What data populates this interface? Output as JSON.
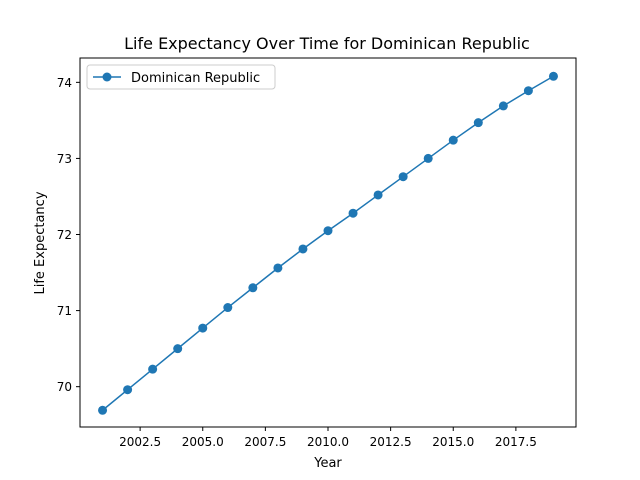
{
  "chart_data": {
    "type": "line",
    "title": "Life Expectancy Over Time for Dominican Republic",
    "xlabel": "Year",
    "ylabel": "Life Expectancy",
    "xlim": [
      2000.1,
      2019.9
    ],
    "ylim": [
      69.47,
      74.32
    ],
    "xticks": [
      2002.5,
      2005.0,
      2007.5,
      2010.0,
      2012.5,
      2015.0,
      2017.5
    ],
    "xtick_labels": [
      "2002.5",
      "2005.0",
      "2007.5",
      "2010.0",
      "2012.5",
      "2015.0",
      "2017.5"
    ],
    "yticks": [
      70,
      71,
      72,
      73,
      74
    ],
    "ytick_labels": [
      "70",
      "71",
      "72",
      "73",
      "74"
    ],
    "grid": false,
    "legend_position": "top-left",
    "series": [
      {
        "name": "Dominican Republic",
        "color": "#1f77b4",
        "marker": "circle",
        "x": [
          2001,
          2002,
          2003,
          2004,
          2005,
          2006,
          2007,
          2008,
          2009,
          2010,
          2011,
          2012,
          2013,
          2014,
          2015,
          2016,
          2017,
          2018,
          2019
        ],
        "y": [
          69.69,
          69.96,
          70.23,
          70.5,
          70.77,
          71.04,
          71.3,
          71.56,
          71.81,
          72.05,
          72.28,
          72.52,
          72.76,
          73.0,
          73.24,
          73.47,
          73.69,
          73.89,
          74.08
        ]
      }
    ]
  }
}
